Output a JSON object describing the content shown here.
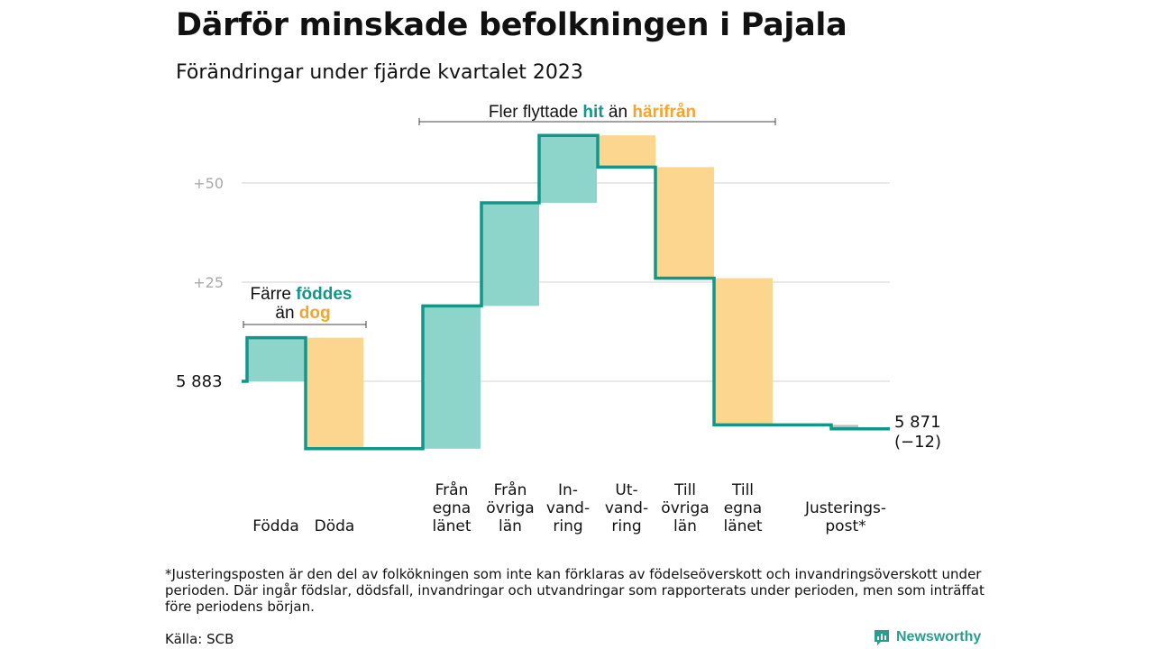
{
  "title": "Därför minskade befolkningen i Pajala",
  "subtitle": "Förändringar under fjärde kvartalet 2023",
  "footnote": "*Justeringsposten är den del av folkökningen som inte kan förklaras av födelseöverskott och invandringsöverskott under perioden. Där ingår födslar, dödsfall, invandringar och utvandringar som rapporterats under perioden, men som inträffat före periodens början.",
  "source": "Källa: SCB",
  "logo_text": "Newsworthy",
  "colors": {
    "positive": "#8dd5cb",
    "negative": "#fcd68e",
    "line": "#13968a",
    "grid": "#d9d9d9",
    "adjustment": "#bdbdbd",
    "teal_text": "#13968a",
    "orange_text": "#f3a530"
  },
  "annotations": {
    "migration": {
      "pre": "Fler flyttade",
      "hit": "hit",
      "mid": "än",
      "harifran": "härifrån"
    },
    "births": {
      "pre": "Färre",
      "fodes": "föddes",
      "mid": "än",
      "dog": "dog"
    }
  },
  "chart_data": {
    "type": "waterfall",
    "start_label": "5  883",
    "end_label": "5 871",
    "end_delta_label": "(−12)",
    "start": 5883,
    "end": 5871,
    "y_ticks": [
      {
        "value": 25,
        "label": "+25"
      },
      {
        "value": 50,
        "label": "+50"
      }
    ],
    "ylim": [
      -20,
      63
    ],
    "grid": true,
    "steps": [
      {
        "label": [
          "Födda"
        ],
        "value": 11
      },
      {
        "label": [
          "Döda"
        ],
        "value": -28
      },
      {
        "label": [
          "Från",
          "egna",
          "länet"
        ],
        "value": 36
      },
      {
        "label": [
          "Från",
          "övriga",
          "län"
        ],
        "value": 26
      },
      {
        "label": [
          "In-",
          "vand-",
          "ring"
        ],
        "value": 17
      },
      {
        "label": [
          "Ut-",
          "vand-",
          "ring"
        ],
        "value": -8
      },
      {
        "label": [
          "Till",
          "övriga",
          "län"
        ],
        "value": -28
      },
      {
        "label": [
          "Till",
          "egna",
          "länet"
        ],
        "value": -37
      },
      {
        "label": [
          "Justerings-",
          "post*"
        ],
        "value": -1
      }
    ]
  }
}
